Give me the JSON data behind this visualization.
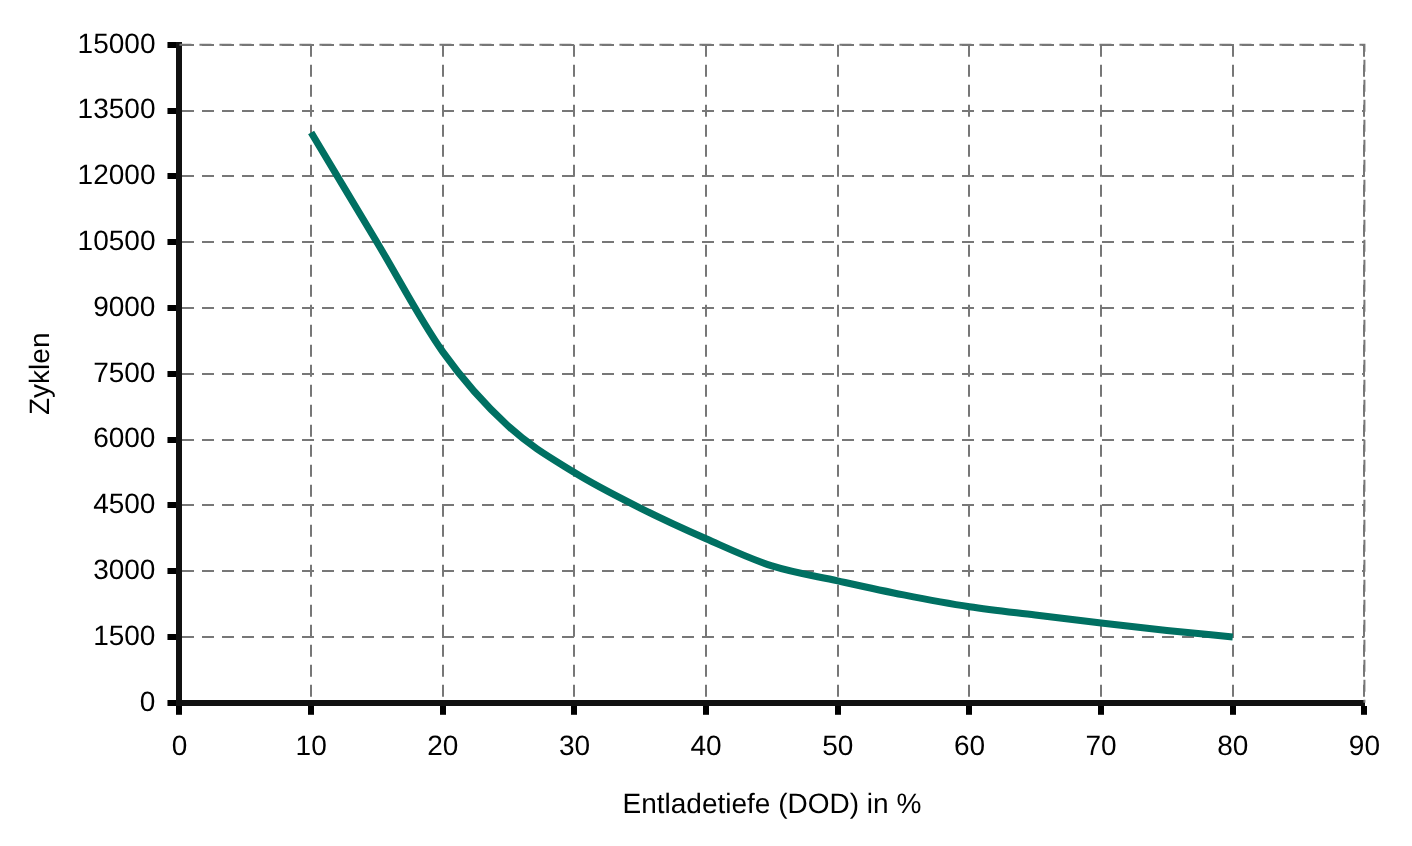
{
  "chart_data": {
    "type": "line",
    "xlabel": "Entladetiefe (DOD) in %",
    "ylabel": "Zyklen",
    "xlim": [
      0,
      90
    ],
    "xticks": [
      0,
      10,
      20,
      30,
      40,
      50,
      60,
      70,
      80,
      90
    ],
    "ylim": [
      0,
      15000
    ],
    "yticks": [
      0,
      1500,
      3000,
      4500,
      6000,
      7500,
      9000,
      10500,
      12000,
      13500,
      15000
    ],
    "grid": true,
    "legend": false,
    "marker": "none",
    "line_style": "solid",
    "series": [
      {
        "color": "#007062",
        "x": [
          10,
          15,
          20,
          25,
          30,
          35,
          40,
          45,
          50,
          55,
          60,
          65,
          70,
          75,
          80
        ],
        "values": [
          13000,
          10500,
          8000,
          6300,
          5250,
          4440,
          3740,
          3120,
          2780,
          2460,
          2190,
          2000,
          1820,
          1650,
          1500
        ]
      }
    ]
  }
}
